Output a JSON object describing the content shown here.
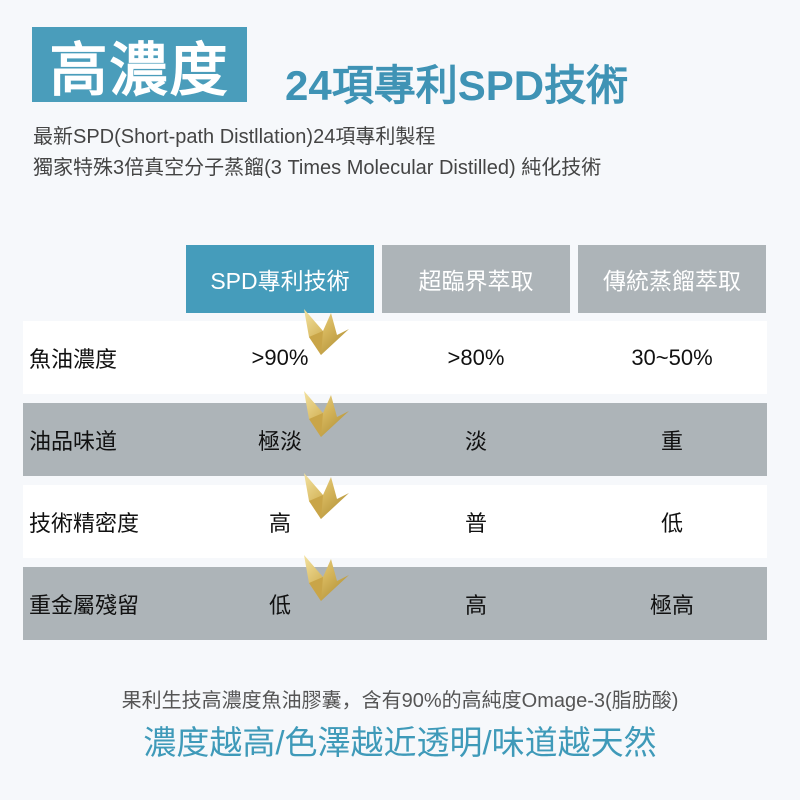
{
  "badge": "高濃度",
  "headline": "24項專利SPD技術",
  "subtitle": [
    "最新SPD(Short-path Distllation)24項專利製程",
    "獨家特殊3倍真空分子蒸餾(3 Times Molecular Distilled) 純化技術"
  ],
  "colors": {
    "accent": "#4a9dbb",
    "header_gray": "#adb4b8",
    "row_gray": "#adb4b8",
    "crown": "#d4b45a"
  },
  "table": {
    "headers": [
      "SPD專利技術",
      "超臨界萃取",
      "傳統蒸餾萃取"
    ],
    "rows": [
      {
        "label": "魚油濃度",
        "values": [
          ">90%",
          ">80%",
          "30~50%"
        ]
      },
      {
        "label": "油品味道",
        "values": [
          "極淡",
          "淡",
          "重"
        ]
      },
      {
        "label": "技術精密度",
        "values": [
          "高",
          "普",
          "低"
        ]
      },
      {
        "label": "重金屬殘留",
        "values": [
          "低",
          "高",
          "極高"
        ]
      }
    ],
    "winner_icon": "crown-icon"
  },
  "footer": {
    "line1": "果利生技高濃度魚油膠囊，含有90%的高純度Omage-3(脂肪酸)",
    "line2": "濃度越高/色澤越近透明/味道越天然"
  }
}
